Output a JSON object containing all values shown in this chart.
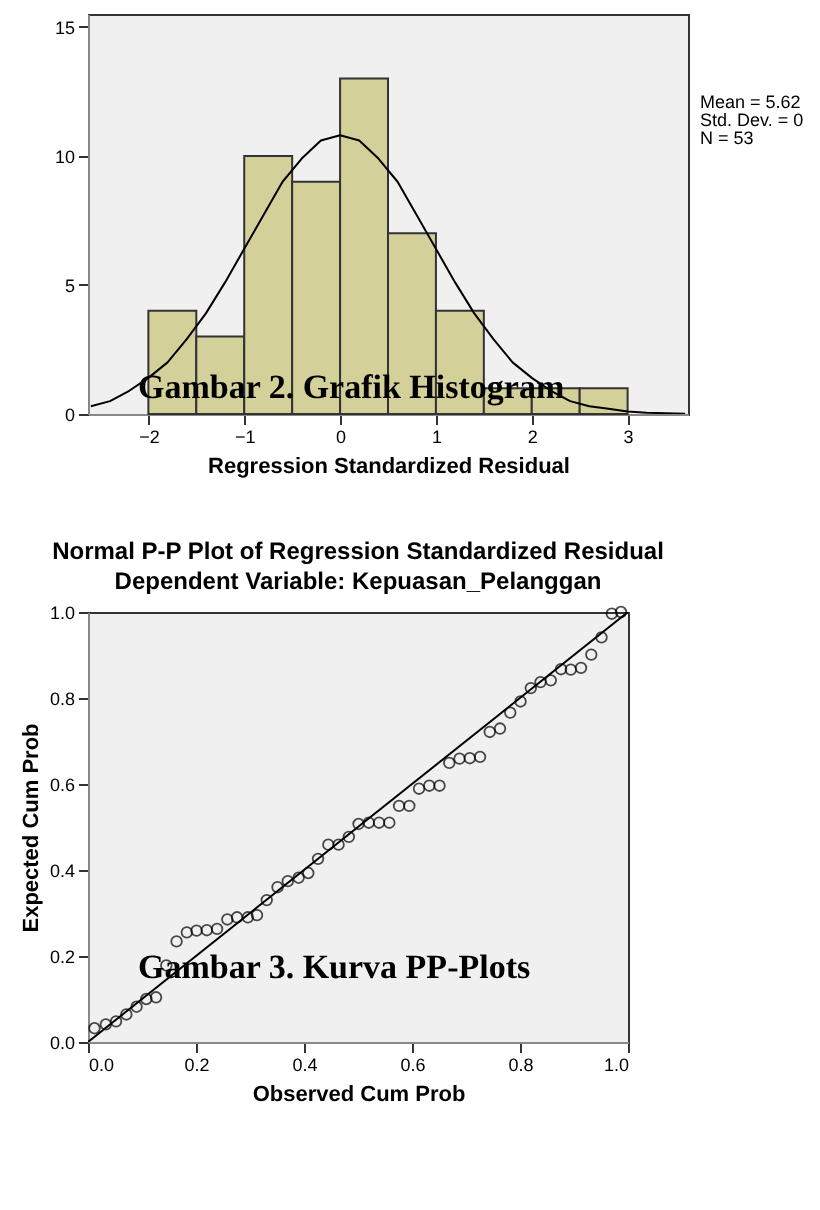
{
  "chart_data": [
    {
      "type": "histogram",
      "xlabel": "Regression Standardized Residual",
      "bins": [
        -2,
        -1.5,
        -1,
        -0.5,
        0,
        0.5,
        1,
        1.5,
        2,
        2.5,
        3
      ],
      "values": [
        4,
        3,
        10,
        9,
        13,
        7,
        4,
        1,
        1,
        1
      ],
      "color": "#d4d09a",
      "series": [
        {
          "type": "line",
          "color": "#000000",
          "x": [
            -2.6,
            -2.4,
            -2.2,
            -2.0,
            -1.8,
            -1.6,
            -1.4,
            -1.2,
            -1.0,
            -0.8,
            -0.6,
            -0.4,
            -0.2,
            0,
            0.2,
            0.4,
            0.6,
            0.8,
            1.0,
            1.2,
            1.4,
            1.6,
            1.8,
            2.0,
            2.2,
            2.4,
            2.6,
            2.8,
            3.0,
            3.2,
            3.4,
            3.6
          ],
          "values": [
            0.3,
            0.5,
            0.9,
            1.4,
            2.0,
            2.9,
            3.9,
            5.1,
            6.4,
            7.7,
            9.0,
            9.9,
            10.6,
            10.8,
            10.6,
            9.9,
            9.0,
            7.7,
            6.4,
            5.1,
            3.9,
            2.9,
            2.0,
            1.4,
            0.9,
            0.5,
            0.3,
            0.2,
            0.1,
            0.05,
            0.03,
            0.01
          ]
        }
      ],
      "xlim": [
        -2.63,
        3.63
      ],
      "ylim": [
        0,
        15.5
      ],
      "xticks": [
        -2,
        -1,
        0,
        1,
        2,
        3
      ],
      "yticks": [
        0,
        5,
        10,
        15
      ],
      "grid": false,
      "annotations": [
        "Mean = 5.62",
        "Std. Dev. = 0",
        "N = 53",
        "Gambar 2. Grafik Histogram"
      ]
    },
    {
      "type": "scatter",
      "title": "Normal P-P Plot of Regression Standardized Residual",
      "subtitle": "Dependent Variable: Kepuasan_Pelanggan",
      "xlabel": "Observed Cum Prob",
      "ylabel": "Expected Cum Prob",
      "series": [
        {
          "color": "#000000",
          "marker": "circle",
          "x": [
            0.012,
            0.033,
            0.052,
            0.071,
            0.09,
            0.108,
            0.126,
            0.145,
            0.164,
            0.183,
            0.201,
            0.22,
            0.239,
            0.258,
            0.276,
            0.296,
            0.313,
            0.331,
            0.351,
            0.37,
            0.39,
            0.408,
            0.426,
            0.445,
            0.464,
            0.483,
            0.501,
            0.52,
            0.539,
            0.558,
            0.576,
            0.595,
            0.613,
            0.632,
            0.651,
            0.669,
            0.688,
            0.707,
            0.726,
            0.744,
            0.763,
            0.782,
            0.801,
            0.82,
            0.838,
            0.857,
            0.876,
            0.894,
            0.913,
            0.932,
            0.951,
            0.97,
            0.987
          ],
          "values": [
            0.032,
            0.041,
            0.048,
            0.064,
            0.082,
            0.1,
            0.104,
            0.178,
            0.234,
            0.255,
            0.259,
            0.26,
            0.263,
            0.285,
            0.29,
            0.29,
            0.295,
            0.33,
            0.36,
            0.374,
            0.382,
            0.393,
            0.426,
            0.459,
            0.459,
            0.477,
            0.507,
            0.51,
            0.51,
            0.51,
            0.549,
            0.549,
            0.589,
            0.596,
            0.596,
            0.649,
            0.659,
            0.66,
            0.663,
            0.721,
            0.729,
            0.766,
            0.792,
            0.823,
            0.837,
            0.841,
            0.867,
            0.866,
            0.87,
            0.901,
            0.941,
            0.996,
            1.0
          ]
        },
        {
          "type": "line",
          "color": "#000000",
          "x": [
            0,
            1
          ],
          "values": [
            0,
            1
          ]
        }
      ],
      "xlim": [
        0,
        1
      ],
      "ylim": [
        0,
        1
      ],
      "xticks": [
        {
          "value": 0,
          "label": "0.0"
        },
        {
          "value": 0.2,
          "label": "0.2"
        },
        {
          "value": 0.4,
          "label": "0.4"
        },
        {
          "value": 0.6,
          "label": "0.6"
        },
        {
          "value": 0.8,
          "label": "0.8"
        },
        {
          "value": 1,
          "label": "1.0"
        }
      ],
      "yticks": [
        {
          "value": 0,
          "label": "0.0"
        },
        {
          "value": 0.2,
          "label": "0.2"
        },
        {
          "value": 0.4,
          "label": "0.4"
        },
        {
          "value": 0.6,
          "label": "0.6"
        },
        {
          "value": 0.8,
          "label": "0.8"
        },
        {
          "value": 1,
          "label": "1.0"
        }
      ],
      "grid": false,
      "annotations": [
        "Gambar 3. Kurva PP-Plots"
      ]
    }
  ]
}
